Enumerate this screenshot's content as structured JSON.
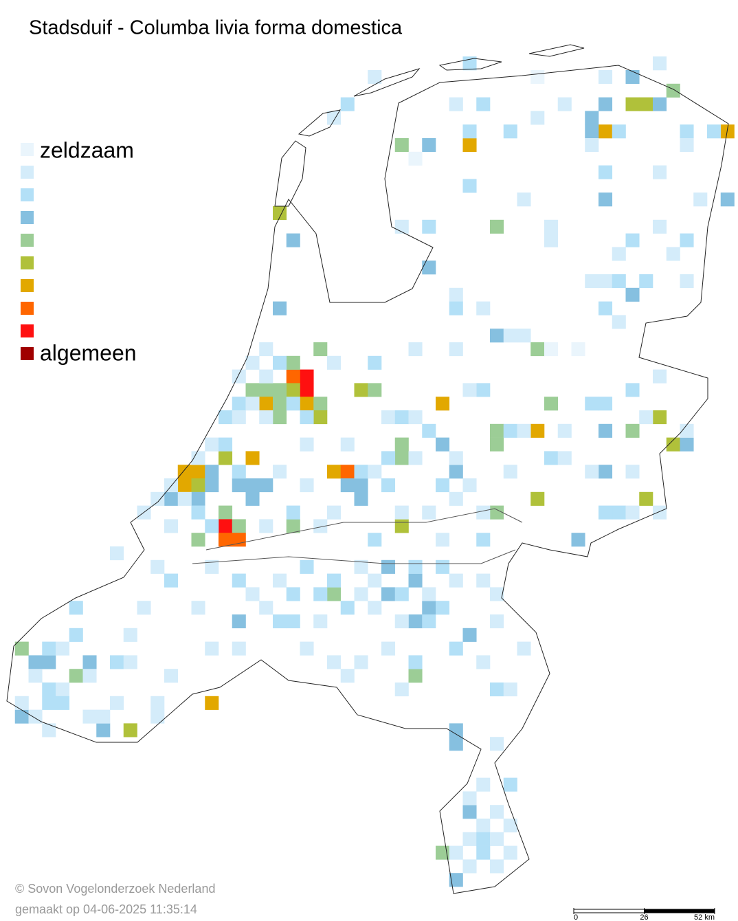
{
  "title": "Stadsduif - Columba livia forma domestica",
  "legend": {
    "low_label": "zeldzaam",
    "high_label": "algemeen",
    "colors": [
      "#eaf5fc",
      "#d4ecfa",
      "#b3e0f7",
      "#86c0e0",
      "#9ccd96",
      "#b0c13a",
      "#e2a800",
      "#ff6600",
      "#ff1010",
      "#a00000"
    ]
  },
  "cells": [
    [
      22,
      27,
      8
    ],
    [
      22,
      28,
      8
    ],
    [
      21,
      27,
      7
    ],
    [
      21,
      28,
      5
    ],
    [
      18,
      28,
      4
    ],
    [
      19,
      28,
      4
    ],
    [
      20,
      28,
      4
    ],
    [
      19,
      29,
      6
    ],
    [
      22,
      29,
      6
    ],
    [
      20,
      29,
      4
    ],
    [
      23,
      29,
      4
    ],
    [
      20,
      30,
      4
    ],
    [
      23,
      30,
      5
    ],
    [
      21,
      26,
      4
    ],
    [
      23,
      25,
      4
    ],
    [
      26,
      28,
      5
    ],
    [
      27,
      28,
      4
    ],
    [
      32,
      29,
      6
    ],
    [
      13,
      34,
      6
    ],
    [
      14,
      34,
      6
    ],
    [
      13,
      35,
      6
    ],
    [
      14,
      35,
      5
    ],
    [
      16,
      33,
      5
    ],
    [
      18,
      33,
      6
    ],
    [
      24,
      34,
      6
    ],
    [
      25,
      34,
      7
    ],
    [
      16,
      37,
      4
    ],
    [
      16,
      38,
      8
    ],
    [
      17,
      38,
      4
    ],
    [
      16,
      39,
      7
    ],
    [
      17,
      39,
      7
    ],
    [
      14,
      39,
      4
    ],
    [
      29,
      33,
      4
    ],
    [
      29,
      32,
      4
    ],
    [
      36,
      31,
      4
    ],
    [
      36,
      32,
      4
    ],
    [
      39,
      31,
      6
    ],
    [
      40,
      29,
      4
    ],
    [
      39,
      25,
      4
    ],
    [
      39,
      36,
      5
    ],
    [
      48,
      30,
      5
    ],
    [
      46,
      31,
      4
    ],
    [
      49,
      32,
      5
    ],
    [
      47,
      36,
      5
    ],
    [
      36,
      37,
      4
    ],
    [
      29,
      38,
      5
    ],
    [
      21,
      38,
      4
    ],
    [
      24,
      43,
      4
    ],
    [
      30,
      49,
      4
    ],
    [
      1,
      47,
      4
    ],
    [
      5,
      49,
      4
    ],
    [
      9,
      53,
      5
    ],
    [
      15,
      51,
      6
    ],
    [
      32,
      62,
      4
    ],
    [
      29,
      10,
      4
    ],
    [
      34,
      10,
      6
    ],
    [
      36,
      16,
      4
    ],
    [
      20,
      15,
      5
    ],
    [
      44,
      9,
      6
    ],
    [
      46,
      7,
      5
    ],
    [
      47,
      7,
      5
    ],
    [
      49,
      6,
      4
    ],
    [
      53,
      9,
      6
    ],
    [
      46,
      5,
      3
    ],
    [
      43,
      8,
      3
    ],
    [
      43,
      9,
      3
    ],
    [
      44,
      7,
      3
    ],
    [
      48,
      7,
      3
    ],
    [
      31,
      10,
      3
    ],
    [
      44,
      14,
      3
    ],
    [
      53,
      14,
      3
    ],
    [
      21,
      17,
      3
    ],
    [
      20,
      22,
      3
    ],
    [
      31,
      19,
      3
    ],
    [
      46,
      21,
      3
    ],
    [
      36,
      24,
      3
    ],
    [
      32,
      32,
      3
    ],
    [
      33,
      34,
      3
    ],
    [
      44,
      31,
      3
    ],
    [
      44,
      34,
      3
    ],
    [
      50,
      32,
      3
    ],
    [
      15,
      34,
      3
    ],
    [
      15,
      35,
      3
    ],
    [
      17,
      35,
      3
    ],
    [
      18,
      35,
      3
    ],
    [
      19,
      35,
      3
    ],
    [
      25,
      35,
      3
    ],
    [
      26,
      35,
      3
    ],
    [
      26,
      36,
      3
    ],
    [
      12,
      36,
      3
    ],
    [
      14,
      36,
      3
    ],
    [
      18,
      36,
      3
    ],
    [
      28,
      41,
      3
    ],
    [
      30,
      42,
      3
    ],
    [
      28,
      43,
      3
    ],
    [
      17,
      45,
      3
    ],
    [
      30,
      45,
      3
    ],
    [
      31,
      44,
      3
    ],
    [
      34,
      46,
      3
    ],
    [
      2,
      48,
      3
    ],
    [
      3,
      48,
      3
    ],
    [
      6,
      48,
      3
    ],
    [
      1,
      52,
      3
    ],
    [
      7,
      53,
      3
    ],
    [
      33,
      53,
      3
    ],
    [
      33,
      54,
      3
    ],
    [
      34,
      59,
      3
    ],
    [
      33,
      64,
      3
    ],
    [
      42,
      39,
      3
    ],
    [
      27,
      5,
      1
    ],
    [
      34,
      4,
      2
    ],
    [
      39,
      5,
      0
    ],
    [
      44,
      5,
      1
    ],
    [
      48,
      4,
      1
    ],
    [
      25,
      7,
      2
    ],
    [
      35,
      7,
      2
    ],
    [
      24,
      8,
      1
    ],
    [
      33,
      7,
      1
    ],
    [
      39,
      8,
      1
    ],
    [
      41,
      7,
      1
    ],
    [
      50,
      9,
      2
    ],
    [
      52,
      9,
      2
    ],
    [
      34,
      9,
      2
    ],
    [
      37,
      9,
      2
    ],
    [
      45,
      9,
      2
    ],
    [
      43,
      10,
      1
    ],
    [
      50,
      10,
      1
    ],
    [
      30,
      11,
      0
    ],
    [
      44,
      12,
      2
    ],
    [
      48,
      12,
      1
    ],
    [
      34,
      13,
      2
    ],
    [
      38,
      14,
      1
    ],
    [
      51,
      14,
      1
    ],
    [
      29,
      16,
      1
    ],
    [
      31,
      16,
      2
    ],
    [
      40,
      16,
      1
    ],
    [
      48,
      16,
      1
    ],
    [
      40,
      17,
      1
    ],
    [
      46,
      17,
      2
    ],
    [
      50,
      17,
      2
    ],
    [
      45,
      18,
      1
    ],
    [
      49,
      18,
      1
    ],
    [
      33,
      21,
      1
    ],
    [
      43,
      20,
      1
    ],
    [
      44,
      20,
      1
    ],
    [
      45,
      20,
      2
    ],
    [
      47,
      20,
      2
    ],
    [
      50,
      20,
      1
    ],
    [
      33,
      22,
      2
    ],
    [
      35,
      22,
      1
    ],
    [
      44,
      22,
      2
    ],
    [
      45,
      23,
      1
    ],
    [
      37,
      24,
      1
    ],
    [
      38,
      24,
      1
    ],
    [
      30,
      25,
      1
    ],
    [
      33,
      25,
      1
    ],
    [
      40,
      25,
      0
    ],
    [
      42,
      25,
      0
    ],
    [
      19,
      25,
      1
    ],
    [
      20,
      26,
      2
    ],
    [
      27,
      26,
      2
    ],
    [
      18,
      26,
      1
    ],
    [
      24,
      26,
      1
    ],
    [
      17,
      27,
      1
    ],
    [
      19,
      27,
      1
    ],
    [
      46,
      28,
      2
    ],
    [
      48,
      27,
      1
    ],
    [
      35,
      28,
      2
    ],
    [
      34,
      28,
      1
    ],
    [
      17,
      29,
      2
    ],
    [
      18,
      29,
      1
    ],
    [
      21,
      29,
      2
    ],
    [
      16,
      30,
      2
    ],
    [
      17,
      30,
      1
    ],
    [
      19,
      30,
      1
    ],
    [
      22,
      30,
      2
    ],
    [
      28,
      30,
      1
    ],
    [
      29,
      30,
      2
    ],
    [
      30,
      30,
      1
    ],
    [
      31,
      31,
      2
    ],
    [
      43,
      29,
      2
    ],
    [
      44,
      29,
      2
    ],
    [
      47,
      30,
      1
    ],
    [
      37,
      31,
      2
    ],
    [
      38,
      31,
      1
    ],
    [
      41,
      31,
      1
    ],
    [
      50,
      31,
      1
    ],
    [
      15,
      32,
      1
    ],
    [
      16,
      32,
      2
    ],
    [
      22,
      32,
      1
    ],
    [
      25,
      32,
      1
    ],
    [
      28,
      33,
      2
    ],
    [
      30,
      33,
      1
    ],
    [
      33,
      33,
      1
    ],
    [
      40,
      33,
      2
    ],
    [
      41,
      33,
      1
    ],
    [
      14,
      33,
      1
    ],
    [
      17,
      34,
      2
    ],
    [
      20,
      34,
      1
    ],
    [
      26,
      34,
      2
    ],
    [
      27,
      34,
      1
    ],
    [
      37,
      34,
      1
    ],
    [
      43,
      34,
      1
    ],
    [
      46,
      34,
      1
    ],
    [
      12,
      35,
      1
    ],
    [
      22,
      35,
      1
    ],
    [
      28,
      35,
      2
    ],
    [
      32,
      35,
      2
    ],
    [
      34,
      35,
      1
    ],
    [
      11,
      36,
      1
    ],
    [
      13,
      36,
      1
    ],
    [
      33,
      36,
      1
    ],
    [
      45,
      37,
      2
    ],
    [
      44,
      37,
      2
    ],
    [
      46,
      37,
      1
    ],
    [
      48,
      37,
      1
    ],
    [
      10,
      37,
      1
    ],
    [
      14,
      37,
      2
    ],
    [
      21,
      37,
      2
    ],
    [
      24,
      37,
      1
    ],
    [
      29,
      37,
      1
    ],
    [
      31,
      37,
      1
    ],
    [
      35,
      37,
      1
    ],
    [
      12,
      38,
      1
    ],
    [
      15,
      38,
      2
    ],
    [
      19,
      38,
      1
    ],
    [
      23,
      38,
      1
    ],
    [
      27,
      39,
      2
    ],
    [
      32,
      39,
      1
    ],
    [
      35,
      39,
      2
    ],
    [
      8,
      40,
      1
    ],
    [
      11,
      41,
      1
    ],
    [
      15,
      41,
      1
    ],
    [
      22,
      41,
      2
    ],
    [
      26,
      41,
      1
    ],
    [
      32,
      41,
      2
    ],
    [
      35,
      42,
      1
    ],
    [
      12,
      42,
      2
    ],
    [
      17,
      42,
      2
    ],
    [
      20,
      42,
      1
    ],
    [
      24,
      42,
      2
    ],
    [
      27,
      42,
      1
    ],
    [
      30,
      41,
      2
    ],
    [
      33,
      42,
      1
    ],
    [
      18,
      43,
      1
    ],
    [
      21,
      43,
      2
    ],
    [
      23,
      43,
      2
    ],
    [
      26,
      43,
      1
    ],
    [
      29,
      43,
      2
    ],
    [
      31,
      43,
      1
    ],
    [
      36,
      43,
      1
    ],
    [
      5,
      44,
      2
    ],
    [
      10,
      44,
      1
    ],
    [
      14,
      44,
      1
    ],
    [
      19,
      44,
      1
    ],
    [
      25,
      44,
      2
    ],
    [
      27,
      44,
      1
    ],
    [
      32,
      44,
      2
    ],
    [
      20,
      45,
      2
    ],
    [
      21,
      45,
      2
    ],
    [
      23,
      45,
      1
    ],
    [
      29,
      45,
      1
    ],
    [
      31,
      45,
      2
    ],
    [
      36,
      45,
      1
    ],
    [
      5,
      46,
      2
    ],
    [
      9,
      46,
      1
    ],
    [
      15,
      47,
      1
    ],
    [
      17,
      47,
      1
    ],
    [
      22,
      47,
      1
    ],
    [
      28,
      47,
      1
    ],
    [
      33,
      47,
      2
    ],
    [
      38,
      47,
      1
    ],
    [
      3,
      47,
      2
    ],
    [
      4,
      47,
      1
    ],
    [
      24,
      48,
      1
    ],
    [
      26,
      48,
      1
    ],
    [
      30,
      48,
      2
    ],
    [
      35,
      48,
      1
    ],
    [
      8,
      48,
      2
    ],
    [
      9,
      48,
      1
    ],
    [
      2,
      49,
      1
    ],
    [
      6,
      49,
      1
    ],
    [
      12,
      49,
      1
    ],
    [
      25,
      49,
      1
    ],
    [
      29,
      50,
      1
    ],
    [
      36,
      50,
      2
    ],
    [
      37,
      50,
      1
    ],
    [
      3,
      50,
      2
    ],
    [
      4,
      50,
      1
    ],
    [
      1,
      51,
      1
    ],
    [
      3,
      51,
      2
    ],
    [
      4,
      51,
      2
    ],
    [
      8,
      51,
      1
    ],
    [
      11,
      51,
      1
    ],
    [
      6,
      52,
      1
    ],
    [
      7,
      52,
      1
    ],
    [
      2,
      52,
      1
    ],
    [
      11,
      52,
      1
    ],
    [
      3,
      53,
      1
    ],
    [
      36,
      54,
      1
    ],
    [
      35,
      57,
      1
    ],
    [
      37,
      57,
      2
    ],
    [
      34,
      58,
      1
    ],
    [
      36,
      59,
      1
    ],
    [
      35,
      60,
      1
    ],
    [
      37,
      60,
      1
    ],
    [
      34,
      61,
      1
    ],
    [
      35,
      61,
      2
    ],
    [
      36,
      61,
      1
    ],
    [
      33,
      62,
      1
    ],
    [
      35,
      62,
      2
    ],
    [
      37,
      62,
      1
    ],
    [
      34,
      63,
      1
    ],
    [
      36,
      63,
      1
    ]
  ],
  "credit": "© Sovon Vogelonderzoek Nederland",
  "created": "gemaakt op 04-06-2025 11:35:14",
  "scale": {
    "ticks": [
      0,
      26,
      {
        "value": 52,
        "label": "52 km"
      }
    ]
  }
}
